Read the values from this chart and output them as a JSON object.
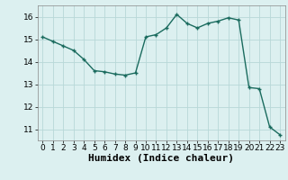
{
  "x": [
    0,
    1,
    2,
    3,
    4,
    5,
    6,
    7,
    8,
    9,
    10,
    11,
    12,
    13,
    14,
    15,
    16,
    17,
    18,
    19,
    20,
    21,
    22,
    23
  ],
  "y": [
    15.1,
    14.9,
    14.7,
    14.5,
    14.1,
    13.6,
    13.55,
    13.45,
    13.4,
    13.5,
    15.1,
    15.2,
    15.5,
    16.1,
    15.7,
    15.5,
    15.7,
    15.8,
    15.95,
    15.85,
    12.85,
    12.8,
    11.1,
    10.75
  ],
  "line_color": "#1a6b5e",
  "marker": "+",
  "marker_size": 3,
  "bg_color": "#dcf0f0",
  "grid_color": "#b8d8d8",
  "xlabel": "Humidex (Indice chaleur)",
  "xlim": [
    -0.5,
    23.5
  ],
  "ylim": [
    10.5,
    16.5
  ],
  "yticks": [
    11,
    12,
    13,
    14,
    15,
    16
  ],
  "xticks": [
    0,
    1,
    2,
    3,
    4,
    5,
    6,
    7,
    8,
    9,
    10,
    11,
    12,
    13,
    14,
    15,
    16,
    17,
    18,
    19,
    20,
    21,
    22,
    23
  ],
  "tick_fontsize": 6.5,
  "xlabel_fontsize": 8,
  "line_width": 1.0
}
